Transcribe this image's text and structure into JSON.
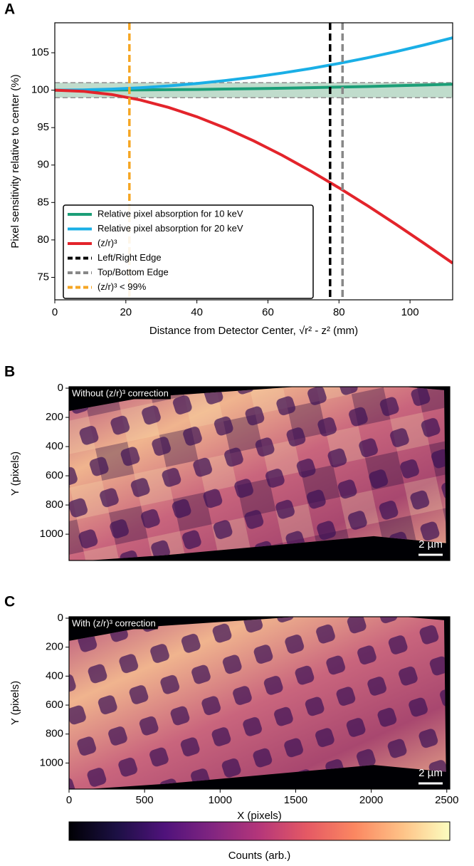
{
  "chart_data": [
    {
      "type": "line",
      "panel_label": "A",
      "xlabel": "Distance from Detector Center, √r² - z² (mm)",
      "ylabel": "Pixel sensitivity relative to center (%)",
      "xlim": [
        0,
        112
      ],
      "ylim": [
        72,
        109
      ],
      "xticks": [
        0,
        20,
        40,
        60,
        80,
        100
      ],
      "yticks": [
        75,
        80,
        85,
        90,
        95,
        100,
        105
      ],
      "x": [
        0,
        8,
        16,
        24,
        32,
        40,
        48,
        56,
        64,
        72,
        80,
        88,
        96,
        104,
        112
      ],
      "series": [
        {
          "name": "Relative pixel absorption for 10 keV",
          "color": "#1b9e77",
          "values": [
            100,
            100,
            100.02,
            100.04,
            100.07,
            100.1,
            100.15,
            100.2,
            100.26,
            100.33,
            100.41,
            100.49,
            100.59,
            100.69,
            100.8
          ]
        },
        {
          "name": "Relative pixel absorption for 20 keV",
          "color": "#1aafe6",
          "values": [
            100,
            100.04,
            100.14,
            100.32,
            100.57,
            100.89,
            101.29,
            101.75,
            102.29,
            102.89,
            103.57,
            104.32,
            105.14,
            106.04,
            107
          ]
        },
        {
          "name": "(z/r)³",
          "color": "#e3242b",
          "values": [
            100,
            99.85,
            99.42,
            98.7,
            97.7,
            96.45,
            94.95,
            93.23,
            91.31,
            89.21,
            86.96,
            84.58,
            82.1,
            79.53,
            76.9
          ]
        }
      ],
      "vlines": [
        {
          "name": "Left/Right Edge",
          "color": "#000000",
          "x": 77.5
        },
        {
          "name": "Top/Bottom Edge",
          "color": "#888888",
          "x": 81
        },
        {
          "name": "(z/r)³ < 99%",
          "color": "#f5a623",
          "x": 21
        }
      ],
      "band": {
        "range": [
          99,
          101
        ],
        "color": "#2e8b57"
      },
      "legend": "lower left"
    },
    {
      "type": "image",
      "panel_label": "B",
      "annotation": "Without (z/r)³ correction",
      "scale_bar": "2 µm",
      "ylabel": "Y (pixels)",
      "xlim": [
        0,
        2520
      ],
      "ylim": [
        1180,
        -10
      ],
      "yticks": [
        0,
        200,
        400,
        600,
        800,
        1000
      ],
      "colormap": "magma"
    },
    {
      "type": "image",
      "panel_label": "C",
      "annotation": "With (z/r)³ correction",
      "scale_bar": "2 µm",
      "ylabel": "Y (pixels)",
      "xlabel": "X (pixels)",
      "xlim": [
        0,
        2520
      ],
      "ylim": [
        1180,
        -10
      ],
      "xticks": [
        0,
        500,
        1000,
        1500,
        2000,
        2500
      ],
      "yticks": [
        0,
        200,
        400,
        600,
        800,
        1000
      ],
      "colormap": "magma"
    },
    {
      "type": "colorbar",
      "label": "Counts (arb.)",
      "colormap": "magma"
    }
  ]
}
